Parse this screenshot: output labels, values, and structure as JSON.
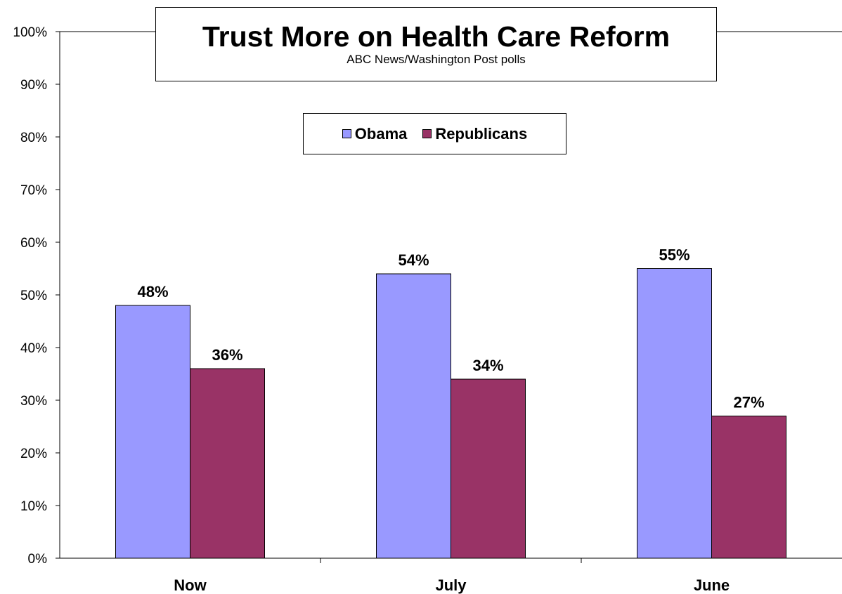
{
  "chart_data": {
    "type": "bar",
    "title": "Trust More on Health Care Reform",
    "subtitle": "ABC News/Washington Post polls",
    "categories": [
      "Now",
      "July",
      "June"
    ],
    "series": [
      {
        "name": "Obama",
        "values": [
          48,
          54,
          55
        ],
        "labels": [
          "48%",
          "54%",
          "55%"
        ],
        "color": "#9999FF"
      },
      {
        "name": "Republicans",
        "values": [
          36,
          34,
          27
        ],
        "labels": [
          "36%",
          "34%",
          "27%"
        ],
        "color": "#993366"
      }
    ],
    "ylim": [
      0,
      100
    ],
    "yticks": [
      "0%",
      "10%",
      "20%",
      "30%",
      "40%",
      "50%",
      "60%",
      "70%",
      "80%",
      "90%",
      "100%"
    ],
    "grid": false,
    "legend_position": "top-center"
  }
}
